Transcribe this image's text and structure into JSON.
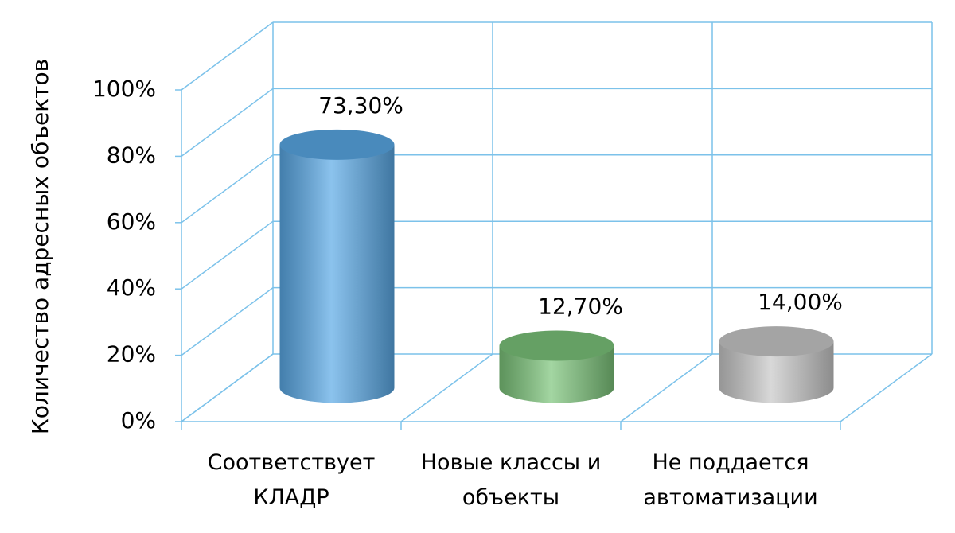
{
  "chart_data": {
    "type": "cylinder",
    "y_axis_label": "Количество адресных объектов",
    "categories": [
      "Соответствует КЛАДР",
      "Новые классы и объекты",
      "Не поддается автоматизации"
    ],
    "values": [
      73.3,
      12.7,
      14.0
    ],
    "value_labels": [
      "73,30%",
      "12,70%",
      "14,00%"
    ],
    "colors": [
      "#5aa9e6",
      "#7cc47a",
      "#c8c8c8"
    ],
    "ylim": [
      0,
      100
    ],
    "yticks": [
      {
        "value": 0,
        "label": "0%"
      },
      {
        "value": 20,
        "label": "20%"
      },
      {
        "value": 40,
        "label": "40%"
      },
      {
        "value": 60,
        "label": "60%"
      },
      {
        "value": 80,
        "label": "80%"
      },
      {
        "value": 100,
        "label": "100%"
      }
    ],
    "grid": true
  }
}
